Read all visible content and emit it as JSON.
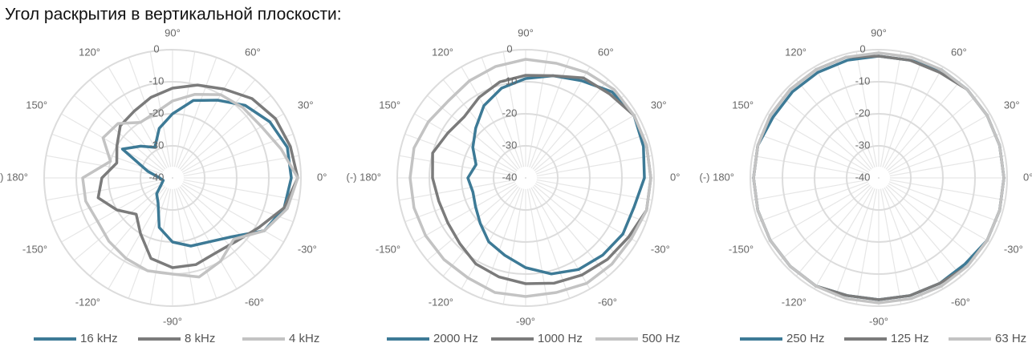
{
  "title": "Угол раскрытия в вертикальной плоскости:",
  "chart_data": [
    {
      "type": "polar",
      "theta": [
        0,
        15,
        30,
        45,
        60,
        75,
        90,
        105,
        120,
        135,
        150,
        165,
        180,
        195,
        210,
        225,
        240,
        255,
        270,
        285,
        300,
        315,
        330,
        345
      ],
      "rlim": [
        -40,
        0
      ],
      "rticks": [
        -40,
        -30,
        -20,
        -10,
        0
      ],
      "thetaticks": [
        {
          "value": 90,
          "label": "90°"
        },
        {
          "value": 60,
          "label": "60°"
        },
        {
          "value": 30,
          "label": "30°"
        },
        {
          "value": 0,
          "label": "0°"
        },
        {
          "value": -30,
          "label": "-30°"
        },
        {
          "value": -60,
          "label": "-60°"
        },
        {
          "value": -90,
          "label": "-90°"
        },
        {
          "value": -120,
          "label": "-120°"
        },
        {
          "value": -150,
          "label": "-150°"
        },
        {
          "value": 180,
          "label": "(-) 180°"
        },
        {
          "value": 150,
          "label": "150°"
        },
        {
          "value": 120,
          "label": "120°"
        }
      ],
      "series": [
        {
          "name": "16 kHz",
          "color": "#3d7a96",
          "values": [
            -3,
            -3,
            -5,
            -8,
            -12,
            -15,
            -20,
            -24,
            -29,
            -26,
            -22,
            -32,
            -36,
            -37,
            -36,
            -33,
            -31,
            -24,
            -20,
            -18,
            -17,
            -14,
            -7,
            -4
          ]
        },
        {
          "name": "8 kHz",
          "color": "#7b7b7b",
          "values": [
            -1,
            -2,
            -3,
            -5,
            -8,
            -10,
            -12,
            -14,
            -16,
            -17,
            -20,
            -22,
            -18,
            -16,
            -20,
            -24,
            -20,
            -14,
            -12,
            -12,
            -13,
            -12,
            -9,
            -4
          ]
        },
        {
          "name": "4 kHz",
          "color": "#c3c3c3",
          "values": [
            -1,
            -5,
            -8,
            -9,
            -10,
            -13,
            -16,
            -19,
            -20,
            -16,
            -15,
            -20,
            -12,
            -12,
            -13,
            -12,
            -11,
            -10,
            -10,
            -8,
            -10,
            -13,
            -7,
            -3
          ]
        }
      ]
    },
    {
      "type": "polar",
      "theta": [
        0,
        15,
        30,
        45,
        60,
        75,
        90,
        105,
        120,
        135,
        150,
        165,
        180,
        195,
        210,
        225,
        240,
        255,
        270,
        285,
        300,
        315,
        330,
        345
      ],
      "rlim": [
        -40,
        0
      ],
      "rticks": [
        -40,
        -30,
        -20,
        -10,
        0
      ],
      "thetaticks": [
        {
          "value": 90,
          "label": "90°"
        },
        {
          "value": 60,
          "label": "60°"
        },
        {
          "value": 30,
          "label": "30°"
        },
        {
          "value": 0,
          "label": "0°"
        },
        {
          "value": -30,
          "label": "-30°"
        },
        {
          "value": -60,
          "label": "-60°"
        },
        {
          "value": -90,
          "label": "-90°"
        },
        {
          "value": -120,
          "label": "-120°"
        },
        {
          "value": -150,
          "label": "-150°"
        },
        {
          "value": 180,
          "label": "(-) 180°"
        },
        {
          "value": 150,
          "label": "150°"
        },
        {
          "value": 120,
          "label": "120°"
        }
      ],
      "series": [
        {
          "name": "2000 Hz",
          "color": "#3d7a96",
          "values": [
            -3,
            -2,
            -1,
            -2,
            -5,
            -7,
            -9,
            -11,
            -14,
            -18,
            -21,
            -24,
            -22,
            -23,
            -22,
            -20,
            -17,
            -15,
            -12,
            -9,
            -7,
            -6,
            -5,
            -5
          ]
        },
        {
          "name": "1000 Hz",
          "color": "#7b7b7b",
          "values": [
            -1,
            -1,
            -1,
            -3,
            -4,
            -7,
            -8,
            -9,
            -11,
            -13,
            -12,
            -10,
            -11,
            -12,
            -12,
            -11,
            -9,
            -8,
            -7,
            -6,
            -5,
            -4,
            -3,
            -1
          ]
        },
        {
          "name": "500 Hz",
          "color": "#c3c3c3",
          "values": [
            -1,
            -1,
            -1,
            -1,
            -2,
            -3,
            -3,
            -4,
            -5,
            -6,
            -5,
            -4,
            -4,
            -4,
            -4,
            -4,
            -4,
            -3,
            -3,
            -3,
            -2,
            -2,
            -2,
            -1
          ]
        }
      ]
    },
    {
      "type": "polar",
      "theta": [
        0,
        15,
        30,
        45,
        60,
        75,
        90,
        105,
        120,
        135,
        150,
        165,
        180,
        195,
        210,
        225,
        240,
        255,
        270,
        285,
        300,
        315,
        330,
        345
      ],
      "rlim": [
        -40,
        0
      ],
      "rticks": [
        -40,
        -30,
        -20,
        -10,
        0
      ],
      "thetaticks": [
        {
          "value": 90,
          "label": "90°"
        },
        {
          "value": 60,
          "label": "60°"
        },
        {
          "value": 30,
          "label": "30°"
        },
        {
          "value": 0,
          "label": "0°"
        },
        {
          "value": -30,
          "label": "-30°"
        },
        {
          "value": -60,
          "label": "-60°"
        },
        {
          "value": -90,
          "label": "-90°"
        },
        {
          "value": -120,
          "label": "-120°"
        },
        {
          "value": -150,
          "label": "-150°"
        },
        {
          "value": 180,
          "label": "(-) 180°"
        },
        {
          "value": 150,
          "label": "150°"
        },
        {
          "value": 120,
          "label": "120°"
        }
      ],
      "series": [
        {
          "name": "250 Hz",
          "color": "#3d7a96",
          "values": [
            -1,
            -1,
            -1,
            -1,
            -1,
            -2,
            -2,
            -2,
            -2,
            -2,
            -2,
            -1,
            -1,
            -1,
            -1,
            -1,
            -1,
            -2,
            -2,
            -2,
            -2,
            -2,
            -1,
            -1
          ]
        },
        {
          "name": "125 Hz",
          "color": "#7b7b7b",
          "values": [
            -1,
            -1,
            -1,
            -1,
            -2,
            -2,
            -2,
            -1,
            -1,
            -1,
            -1,
            -1,
            -1,
            -1,
            -1,
            -1,
            -1,
            -2,
            -2,
            -2,
            -2,
            -1,
            -1,
            -1
          ]
        },
        {
          "name": "63 Hz",
          "color": "#c3c3c3",
          "values": [
            -1,
            -1,
            -1,
            -1,
            -1,
            -1,
            -1,
            -1,
            -1,
            -1,
            -1,
            -1,
            -1,
            -1,
            -1,
            -1,
            -1,
            -1,
            -1,
            -1,
            -1,
            -1,
            -1,
            -1
          ]
        }
      ]
    }
  ]
}
